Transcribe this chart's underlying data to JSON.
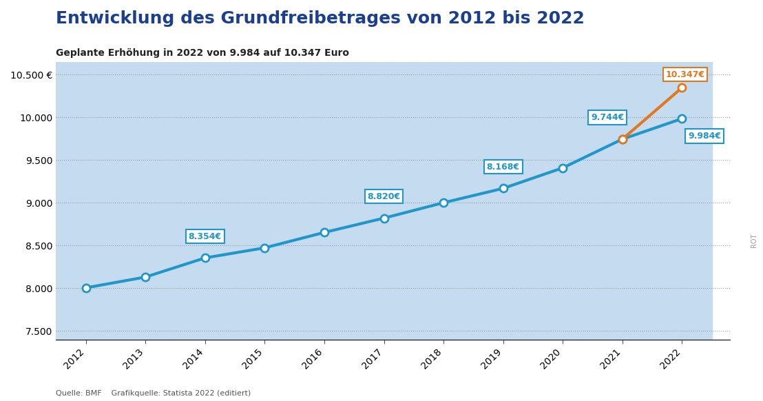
{
  "title": "Entwicklung des Grundfreibetrages von 2012 bis 2022",
  "subtitle": "Geplante Erhöhung in 2022 von 9.984 auf 10.347 Euro",
  "source": "Quelle: BMF    Grafikquelle: Statista 2022 (editiert)",
  "watermark": "ROT",
  "years": [
    2012,
    2013,
    2014,
    2015,
    2016,
    2017,
    2018,
    2019,
    2020,
    2021,
    2022
  ],
  "values_actual": [
    8004,
    8130,
    8354,
    8472,
    8652,
    8820,
    9000,
    9168,
    9408,
    9744,
    9984
  ],
  "value_planned_2022": 10347,
  "line_color_actual": "#2196C8",
  "line_color_planned": "#E07820",
  "label_border_actual": "#2196C8",
  "label_border_planned": "#E07820",
  "label_bg": "#ffffff",
  "label_text_actual": "#2196C8",
  "label_text_planned": "#E07820",
  "grid_color": "#999999",
  "bg_color_chart": "#ffffff",
  "bg_color_bands": "#C5DCF0",
  "title_color": "#1B3F8C",
  "subtitle_color": "#222222",
  "ylim": [
    7400,
    10650
  ],
  "yticks": [
    7500,
    8000,
    8500,
    9000,
    9500,
    10000,
    10500
  ],
  "ytick_labels": [
    "7.500",
    "8.000",
    "8.500",
    "9.000",
    "9.500",
    "10.000",
    "10.500 €"
  ]
}
